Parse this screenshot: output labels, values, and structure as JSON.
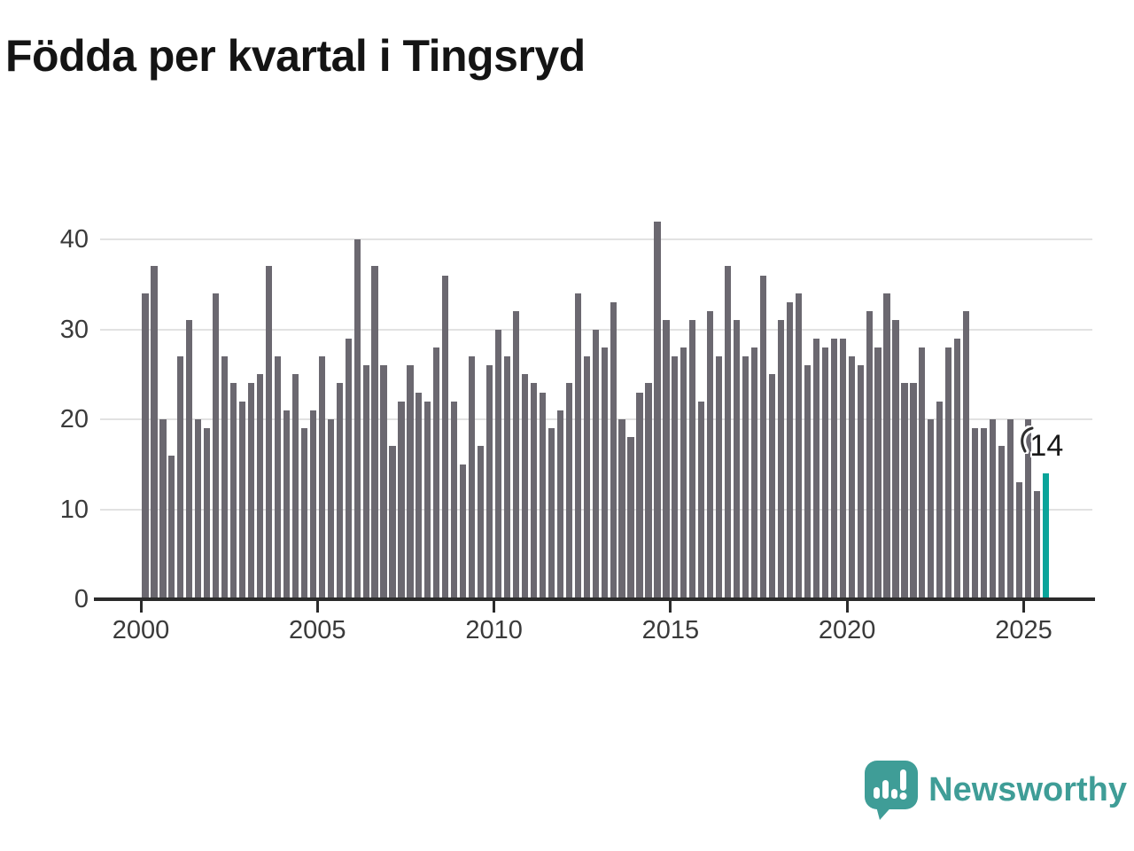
{
  "title": "Födda per kvartal i Tingsryd",
  "chart_data": {
    "type": "bar",
    "x_unit": "kvartal",
    "period_start": "2000 K1",
    "period_end": "2025 K3",
    "values": [
      34,
      37,
      20,
      16,
      27,
      31,
      20,
      19,
      34,
      27,
      24,
      22,
      24,
      25,
      37,
      27,
      21,
      25,
      19,
      21,
      27,
      20,
      24,
      29,
      40,
      26,
      37,
      26,
      17,
      22,
      26,
      23,
      22,
      28,
      36,
      22,
      15,
      27,
      17,
      26,
      30,
      27,
      32,
      25,
      24,
      23,
      19,
      21,
      24,
      34,
      27,
      30,
      28,
      33,
      20,
      18,
      23,
      24,
      42,
      31,
      27,
      28,
      31,
      22,
      32,
      27,
      37,
      31,
      27,
      28,
      36,
      25,
      31,
      33,
      34,
      26,
      29,
      28,
      29,
      29,
      27,
      26,
      32,
      28,
      34,
      31,
      24,
      24,
      28,
      20,
      22,
      28,
      29,
      32,
      19,
      19,
      20,
      17,
      20,
      13,
      20,
      12,
      14
    ],
    "quarters_per_year": 4,
    "x_tick_labels": [
      "2000",
      "2005",
      "2010",
      "2015",
      "2020",
      "2025"
    ],
    "y_ticks": [
      0,
      10,
      20,
      30,
      40
    ],
    "ylim": [
      0,
      42
    ],
    "grid": true,
    "highlight": {
      "index": 102,
      "label": "14"
    },
    "title": "Födda per kvartal i Tingsryd"
  },
  "colors": {
    "bar": "#6b6870",
    "highlight": "#0aa49a",
    "grid": "#e2e2e2",
    "axis": "#2b2b2b",
    "tick_text": "#3a3a3a",
    "title_text": "#141414",
    "annotation_text": "#1a1a1a",
    "logo": "#3f9d97"
  },
  "logo": {
    "text": "Newsworthy"
  }
}
